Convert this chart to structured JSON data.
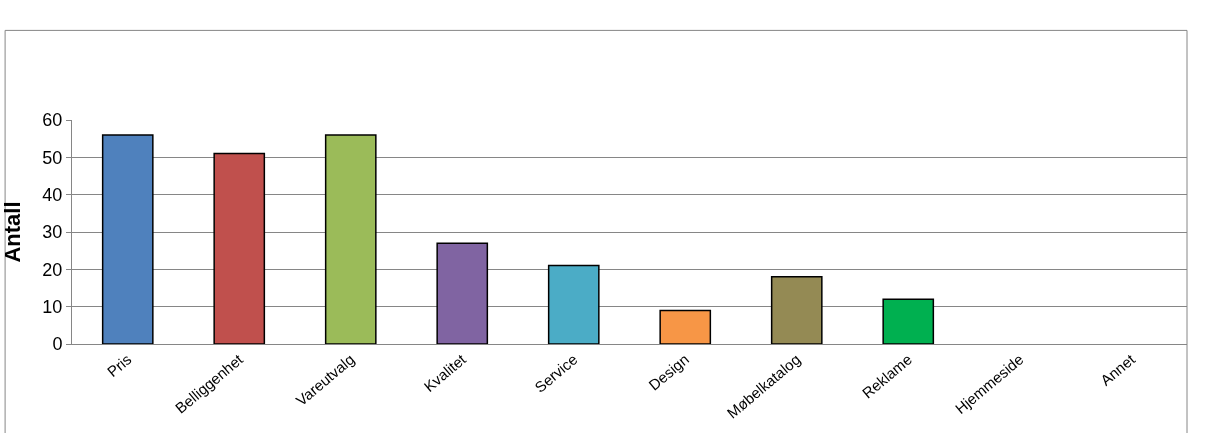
{
  "chart_data": {
    "type": "bar",
    "ylabel": "Antall",
    "categories": [
      "Pris",
      "Belliggenhet",
      "Vareutvalg",
      "Kvalitet",
      "Service",
      "Design",
      "Møbelkatalog",
      "Reklame",
      "Hjemmeside",
      "Annet"
    ],
    "values": [
      56,
      51,
      56,
      27,
      21,
      9,
      18,
      12,
      0,
      0
    ],
    "colors": [
      "#4f81bd",
      "#c0504d",
      "#9bbb59",
      "#8064a2",
      "#4bacc6",
      "#f79646",
      "#948a54",
      "#00b050",
      null,
      null
    ],
    "ylim": [
      0,
      60
    ],
    "yticks": [
      0,
      10,
      20,
      30,
      40,
      50,
      60
    ],
    "grid": "y"
  }
}
